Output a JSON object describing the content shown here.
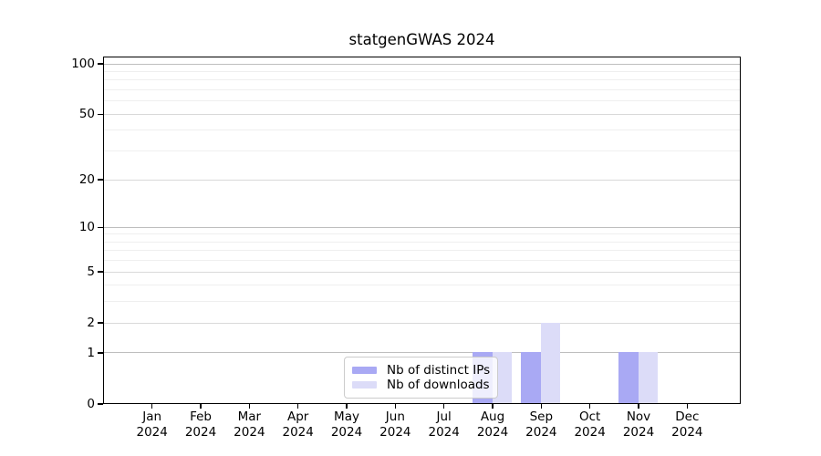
{
  "chart_data": {
    "type": "bar",
    "title": "statgenGWAS 2024",
    "months": [
      "Jan",
      "Feb",
      "Mar",
      "Apr",
      "May",
      "Jun",
      "Jul",
      "Aug",
      "Sep",
      "Oct",
      "Nov",
      "Dec"
    ],
    "year_label": "2024",
    "categories": [
      "Jan 2024",
      "Feb 2024",
      "Mar 2024",
      "Apr 2024",
      "May 2024",
      "Jun 2024",
      "Jul 2024",
      "Aug 2024",
      "Sep 2024",
      "Oct 2024",
      "Nov 2024",
      "Dec 2024"
    ],
    "series": [
      {
        "key": "distinct-ips",
        "name": "Nb of distinct IPs",
        "color": "#a9a9f4",
        "values": [
          0,
          0,
          0,
          0,
          0,
          0,
          0,
          1,
          1,
          0,
          1,
          0
        ]
      },
      {
        "key": "downloads",
        "name": "Nb of downloads",
        "color": "#dcdcf8",
        "values": [
          0,
          0,
          0,
          0,
          0,
          0,
          0,
          1,
          2,
          0,
          1,
          0
        ]
      }
    ],
    "y_scale": "log1p",
    "ylim": [
      0,
      110
    ],
    "yticks": [
      0,
      1,
      2,
      5,
      10,
      20,
      50,
      100
    ],
    "ytick_labels": [
      "0",
      "1",
      "2",
      "5",
      "10",
      "20",
      "50",
      "100"
    ],
    "decade_gridlines": [
      1,
      10,
      100
    ],
    "labeled_gridlines": [
      2,
      5,
      20,
      50
    ],
    "minor_gridlines": [
      3,
      4,
      6,
      7,
      8,
      9,
      30,
      40,
      60,
      70,
      80,
      90
    ],
    "grid": "horizontal",
    "legend_position": "bottom-center",
    "colors": {
      "decade_grid": "#bebebe",
      "labeled_grid": "#d9d9d9",
      "minor_grid": "#efefef",
      "spine": "#000000",
      "legend_border": "#cccccc"
    }
  }
}
